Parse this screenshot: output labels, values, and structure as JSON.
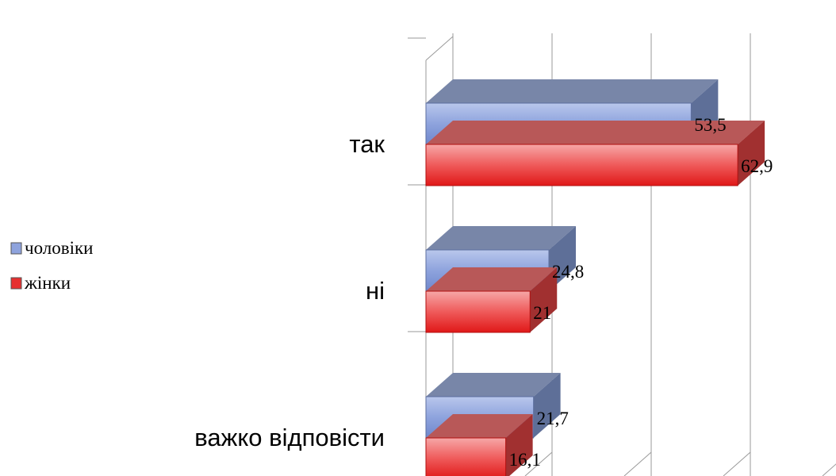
{
  "chart_data": {
    "type": "bar",
    "orientation": "horizontal",
    "three_d": true,
    "categories": [
      "так",
      "ні",
      "важко відповісти"
    ],
    "series": [
      {
        "name": "чоловіки",
        "values": [
          53.5,
          24.8,
          21.7
        ],
        "value_labels": [
          "53,5",
          "24,8",
          "21,7"
        ],
        "color": "#7f96d4"
      },
      {
        "name": "жінки",
        "values": [
          62.9,
          21,
          16.1
        ],
        "value_labels": [
          "62,9",
          "21",
          "16,1"
        ],
        "color": "#ef4545"
      }
    ],
    "xlim": [
      0,
      80
    ],
    "grid": true,
    "legend_position": "left"
  }
}
